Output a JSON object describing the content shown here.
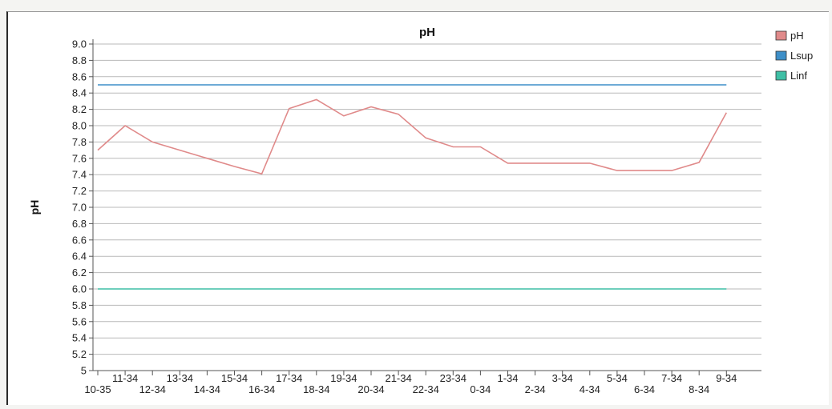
{
  "chart_data": {
    "type": "line",
    "title": "pH",
    "ylabel": "pH",
    "xlabel": "",
    "ylim": [
      5,
      9
    ],
    "yticks": [
      5,
      "5.2",
      "5.4",
      "5.6",
      "5.8",
      "6.0",
      "6.2",
      "6.4",
      "6.6",
      "6.8",
      "7.0",
      "7.2",
      "7.4",
      "7.6",
      "7.8",
      "8.0",
      "8.2",
      "8.4",
      "8.6",
      "8.8",
      "9.0"
    ],
    "categories": [
      "10-35",
      "11-34",
      "12-34",
      "13-34",
      "14-34",
      "15-34",
      "16-34",
      "17-34",
      "18-34",
      "19-34",
      "20-34",
      "21-34",
      "22-34",
      "23-34",
      "0-34",
      "1-34",
      "2-34",
      "3-34",
      "4-34",
      "5-34",
      "6-34",
      "7-34",
      "8-34",
      "9-34"
    ],
    "grid": true,
    "legend": "right",
    "series": [
      {
        "name": "pH",
        "color": "#e08a8a",
        "values": [
          7.7,
          8.0,
          7.8,
          7.7,
          7.6,
          7.5,
          7.41,
          8.21,
          8.32,
          8.12,
          8.23,
          8.14,
          7.85,
          7.74,
          7.74,
          7.54,
          7.54,
          7.54,
          7.54,
          7.45,
          7.45,
          7.45,
          7.55,
          8.16
        ]
      },
      {
        "name": "Lsup",
        "color": "#3e8fc8",
        "values": [
          8.5,
          8.5,
          8.5,
          8.5,
          8.5,
          8.5,
          8.5,
          8.5,
          8.5,
          8.5,
          8.5,
          8.5,
          8.5,
          8.5,
          8.5,
          8.5,
          8.5,
          8.5,
          8.5,
          8.5,
          8.5,
          8.5,
          8.5,
          8.5
        ]
      },
      {
        "name": "Linf",
        "color": "#3fbfa5",
        "values": [
          6.0,
          6.0,
          6.0,
          6.0,
          6.0,
          6.0,
          6.0,
          6.0,
          6.0,
          6.0,
          6.0,
          6.0,
          6.0,
          6.0,
          6.0,
          6.0,
          6.0,
          6.0,
          6.0,
          6.0,
          6.0,
          6.0,
          6.0,
          6.0
        ]
      }
    ]
  }
}
